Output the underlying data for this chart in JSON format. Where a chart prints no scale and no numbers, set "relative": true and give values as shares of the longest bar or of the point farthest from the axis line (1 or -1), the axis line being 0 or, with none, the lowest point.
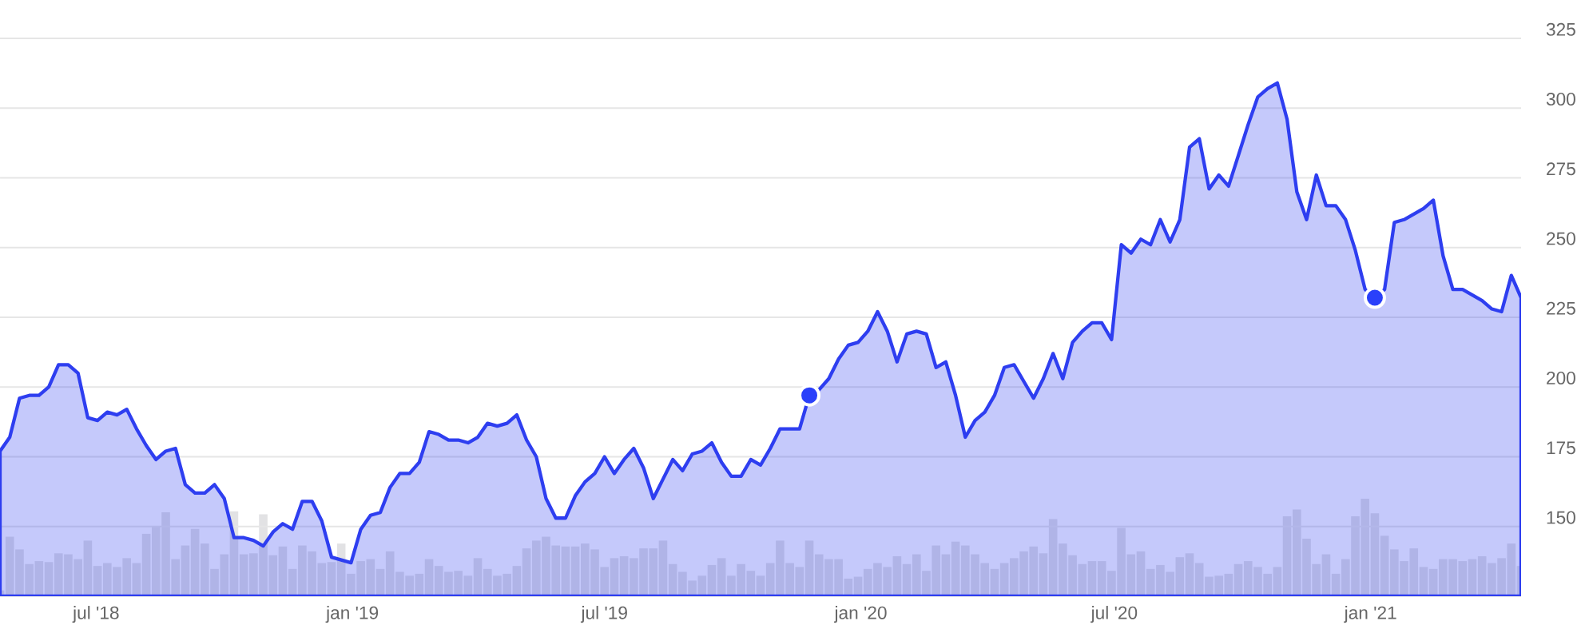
{
  "chart_data": [
    {
      "type": "area",
      "grid": "y",
      "xlim": [
        "2018-04-23",
        "2021-04-19"
      ],
      "xticks": [
        {
          "value": "2018-07-01",
          "label": "jul '18"
        },
        {
          "value": "2019-01-01",
          "label": "jan '19"
        },
        {
          "value": "2019-07-01",
          "label": "jul '19"
        },
        {
          "value": "2020-01-01",
          "label": "jan '20"
        },
        {
          "value": "2020-07-01",
          "label": "jul '20"
        },
        {
          "value": "2021-01-01",
          "label": "jan '21"
        }
      ],
      "ylim": [
        125,
        325
      ],
      "yticks": [
        {
          "value": 125,
          "label": null
        },
        150,
        175,
        200,
        225,
        250,
        275,
        300,
        325
      ],
      "x": [
        "2018-04-23",
        "2018-04-30",
        "2018-05-07",
        "2018-05-14",
        "2018-05-21",
        "2018-05-28",
        "2018-06-04",
        "2018-06-11",
        "2018-06-18",
        "2018-06-25",
        "2018-07-02",
        "2018-07-09",
        "2018-07-16",
        "2018-07-23",
        "2018-07-30",
        "2018-08-06",
        "2018-08-13",
        "2018-08-20",
        "2018-08-27",
        "2018-09-03",
        "2018-09-10",
        "2018-09-17",
        "2018-09-24",
        "2018-10-01",
        "2018-10-08",
        "2018-10-15",
        "2018-10-22",
        "2018-10-29",
        "2018-11-05",
        "2018-11-12",
        "2018-11-19",
        "2018-11-26",
        "2018-12-03",
        "2018-12-10",
        "2018-12-17",
        "2018-12-24",
        "2018-12-31",
        "2019-01-07",
        "2019-01-14",
        "2019-01-21",
        "2019-01-28",
        "2019-02-04",
        "2019-02-11",
        "2019-02-18",
        "2019-02-25",
        "2019-03-04",
        "2019-03-11",
        "2019-03-18",
        "2019-03-25",
        "2019-04-01",
        "2019-04-08",
        "2019-04-15",
        "2019-04-22",
        "2019-04-29",
        "2019-05-06",
        "2019-05-13",
        "2019-05-20",
        "2019-05-27",
        "2019-06-03",
        "2019-06-10",
        "2019-06-17",
        "2019-06-24",
        "2019-07-01",
        "2019-07-08",
        "2019-07-15",
        "2019-07-22",
        "2019-07-29",
        "2019-08-05",
        "2019-08-12",
        "2019-08-19",
        "2019-08-26",
        "2019-09-02",
        "2019-09-09",
        "2019-09-16",
        "2019-09-23",
        "2019-09-30",
        "2019-10-07",
        "2019-10-14",
        "2019-10-21",
        "2019-10-28",
        "2019-11-04",
        "2019-11-11",
        "2019-11-18",
        "2019-11-25",
        "2019-12-02",
        "2019-12-09",
        "2019-12-16",
        "2019-12-23",
        "2019-12-30",
        "2020-01-06",
        "2020-01-13",
        "2020-01-20",
        "2020-01-27",
        "2020-02-03",
        "2020-02-10",
        "2020-02-17",
        "2020-02-24",
        "2020-03-02",
        "2020-03-09",
        "2020-03-16",
        "2020-03-23",
        "2020-03-30",
        "2020-04-06",
        "2020-04-13",
        "2020-04-20",
        "2020-04-27",
        "2020-05-04",
        "2020-05-11",
        "2020-05-18",
        "2020-05-25",
        "2020-06-01",
        "2020-06-08",
        "2020-06-15",
        "2020-06-22",
        "2020-06-29",
        "2020-07-06",
        "2020-07-13",
        "2020-07-20",
        "2020-07-27",
        "2020-08-03",
        "2020-08-10",
        "2020-08-17",
        "2020-08-24",
        "2020-08-31",
        "2020-09-07",
        "2020-09-14",
        "2020-09-21",
        "2020-09-28",
        "2020-10-05",
        "2020-10-12",
        "2020-10-19",
        "2020-10-26",
        "2020-11-02",
        "2020-11-09",
        "2020-11-16",
        "2020-11-23",
        "2020-11-30",
        "2020-12-07",
        "2020-12-14",
        "2020-12-21",
        "2020-12-28",
        "2021-01-04",
        "2021-01-11",
        "2021-01-18",
        "2021-01-25",
        "2021-02-01",
        "2021-02-08",
        "2021-02-15",
        "2021-02-22",
        "2021-03-01",
        "2021-03-08",
        "2021-03-15",
        "2021-03-22",
        "2021-03-29",
        "2021-04-05",
        "2021-04-12",
        "2021-04-19"
      ],
      "series": [
        {
          "type": "area",
          "color": "#2e3ef0",
          "values": [
            177,
            182,
            196,
            197,
            197,
            200,
            208,
            208,
            205,
            189,
            188,
            191,
            190,
            192,
            185,
            179,
            174,
            177,
            178,
            165,
            162,
            162,
            165,
            160,
            146,
            146,
            145,
            143,
            148,
            151,
            149,
            159,
            159,
            152,
            139,
            138,
            137,
            149,
            154,
            155,
            164,
            169,
            169,
            173,
            184,
            183,
            181,
            181,
            180,
            182,
            187,
            186,
            187,
            190,
            181,
            175,
            160,
            153,
            153,
            161,
            166,
            169,
            175,
            169,
            174,
            178,
            171,
            160,
            167,
            174,
            170,
            176,
            177,
            180,
            173,
            168,
            168,
            174,
            172,
            178,
            185,
            185,
            185,
            197,
            199,
            203,
            210,
            215,
            216,
            220,
            227,
            220,
            209,
            219,
            220,
            219,
            207,
            209,
            197,
            182,
            188,
            191,
            197,
            207,
            208,
            202,
            196,
            203,
            212,
            203,
            216,
            220,
            223,
            223,
            217,
            251,
            248,
            253,
            251,
            260,
            252,
            260,
            286,
            289,
            271,
            276,
            272,
            283,
            294,
            304,
            307,
            309,
            296,
            270,
            260,
            276,
            265,
            265,
            260,
            249,
            235,
            232,
            235,
            259,
            260,
            262,
            264,
            267,
            247,
            235,
            235,
            233,
            231,
            228,
            227,
            240,
            232
          ]
        },
        {
          "type": "scatter",
          "marker": "circle",
          "color": "#2a40fa",
          "x": [
            "2019-11-25",
            "2021-01-04"
          ],
          "values": [
            197,
            232
          ]
        }
      ]
    },
    {
      "type": "bar",
      "relative": true,
      "xlim": [
        "2018-04-23",
        "2021-04-19"
      ],
      "x": [
        "2018-04-23",
        "2018-04-30",
        "2018-05-07",
        "2018-05-14",
        "2018-05-21",
        "2018-05-28",
        "2018-06-04",
        "2018-06-11",
        "2018-06-18",
        "2018-06-25",
        "2018-07-02",
        "2018-07-09",
        "2018-07-16",
        "2018-07-23",
        "2018-07-30",
        "2018-08-06",
        "2018-08-13",
        "2018-08-20",
        "2018-08-27",
        "2018-09-03",
        "2018-09-10",
        "2018-09-17",
        "2018-09-24",
        "2018-10-01",
        "2018-10-08",
        "2018-10-15",
        "2018-10-22",
        "2018-10-29",
        "2018-11-05",
        "2018-11-12",
        "2018-11-19",
        "2018-11-26",
        "2018-12-03",
        "2018-12-10",
        "2018-12-17",
        "2018-12-24",
        "2018-12-31",
        "2019-01-07",
        "2019-01-14",
        "2019-01-21",
        "2019-01-28",
        "2019-02-04",
        "2019-02-11",
        "2019-02-18",
        "2019-02-25",
        "2019-03-04",
        "2019-03-11",
        "2019-03-18",
        "2019-03-25",
        "2019-04-01",
        "2019-04-08",
        "2019-04-15",
        "2019-04-22",
        "2019-04-29",
        "2019-05-06",
        "2019-05-13",
        "2019-05-20",
        "2019-05-27",
        "2019-06-03",
        "2019-06-10",
        "2019-06-17",
        "2019-06-24",
        "2019-07-01",
        "2019-07-08",
        "2019-07-15",
        "2019-07-22",
        "2019-07-29",
        "2019-08-05",
        "2019-08-12",
        "2019-08-19",
        "2019-08-26",
        "2019-09-02",
        "2019-09-09",
        "2019-09-16",
        "2019-09-23",
        "2019-09-30",
        "2019-10-07",
        "2019-10-14",
        "2019-10-21",
        "2019-10-28",
        "2019-11-04",
        "2019-11-11",
        "2019-11-18",
        "2019-11-25",
        "2019-12-02",
        "2019-12-09",
        "2019-12-16",
        "2019-12-23",
        "2019-12-30",
        "2020-01-06",
        "2020-01-13",
        "2020-01-20",
        "2020-01-27",
        "2020-02-03",
        "2020-02-10",
        "2020-02-17",
        "2020-02-24",
        "2020-03-02",
        "2020-03-09",
        "2020-03-16",
        "2020-03-23",
        "2020-03-30",
        "2020-04-06",
        "2020-04-13",
        "2020-04-20",
        "2020-04-27",
        "2020-05-04",
        "2020-05-11",
        "2020-05-18",
        "2020-05-25",
        "2020-06-01",
        "2020-06-08",
        "2020-06-15",
        "2020-06-22",
        "2020-06-29",
        "2020-07-06",
        "2020-07-13",
        "2020-07-20",
        "2020-07-27",
        "2020-08-03",
        "2020-08-10",
        "2020-08-17",
        "2020-08-24",
        "2020-08-31",
        "2020-09-07",
        "2020-09-14",
        "2020-09-21",
        "2020-09-28",
        "2020-10-05",
        "2020-10-12",
        "2020-10-19",
        "2020-10-26",
        "2020-11-02",
        "2020-11-09",
        "2020-11-16",
        "2020-11-23",
        "2020-11-30",
        "2020-12-07",
        "2020-12-14",
        "2020-12-21",
        "2020-12-28",
        "2021-01-04",
        "2021-01-11",
        "2021-01-18",
        "2021-01-25",
        "2021-02-01",
        "2021-02-08",
        "2021-02-15",
        "2021-02-22",
        "2021-03-01",
        "2021-03-08",
        "2021-03-15",
        "2021-03-22",
        "2021-03-29",
        "2021-04-05",
        "2021-04-12",
        "2021-04-19"
      ],
      "series": [
        {
          "color": "#e2e2e4",
          "values": [
            0.06,
            0.61,
            0.48,
            0.33,
            0.36,
            0.35,
            0.44,
            0.43,
            0.38,
            0.57,
            0.31,
            0.34,
            0.3,
            0.39,
            0.34,
            0.64,
            0.72,
            0.86,
            0.38,
            0.52,
            0.69,
            0.54,
            0.28,
            0.43,
            0.87,
            0.43,
            0.44,
            0.84,
            0.42,
            0.51,
            0.28,
            0.52,
            0.46,
            0.34,
            0.35,
            0.54,
            0.23,
            0.36,
            0.38,
            0.28,
            0.46,
            0.25,
            0.21,
            0.23,
            0.38,
            0.31,
            0.25,
            0.26,
            0.21,
            0.39,
            0.28,
            0.21,
            0.23,
            0.31,
            0.49,
            0.57,
            0.61,
            0.52,
            0.51,
            0.51,
            0.54,
            0.48,
            0.3,
            0.39,
            0.41,
            0.39,
            0.49,
            0.49,
            0.57,
            0.33,
            0.25,
            0.16,
            0.21,
            0.32,
            0.39,
            0.21,
            0.33,
            0.26,
            0.21,
            0.34,
            0.57,
            0.34,
            0.3,
            0.57,
            0.43,
            0.38,
            0.38,
            0.18,
            0.2,
            0.28,
            0.34,
            0.3,
            0.41,
            0.33,
            0.43,
            0.26,
            0.52,
            0.43,
            0.56,
            0.52,
            0.43,
            0.34,
            0.28,
            0.34,
            0.39,
            0.46,
            0.51,
            0.44,
            0.79,
            0.54,
            0.42,
            0.33,
            0.36,
            0.36,
            0.26,
            0.7,
            0.43,
            0.46,
            0.28,
            0.32,
            0.25,
            0.4,
            0.44,
            0.34,
            0.2,
            0.21,
            0.23,
            0.33,
            0.36,
            0.3,
            0.23,
            0.3,
            0.82,
            0.89,
            0.59,
            0.33,
            0.43,
            0.23,
            0.38,
            0.82,
            1.0,
            0.85,
            0.62,
            0.48,
            0.36,
            0.49,
            0.3,
            0.28,
            0.38,
            0.38,
            0.36,
            0.38,
            0.41,
            0.34,
            0.39,
            0.54,
            0.31
          ]
        }
      ]
    }
  ]
}
